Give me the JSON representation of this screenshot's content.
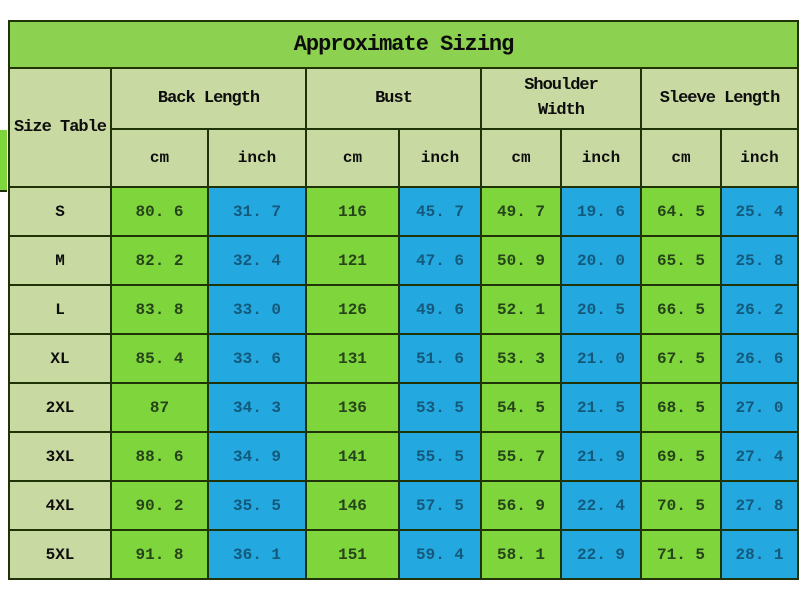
{
  "title": "Approximate Sizing",
  "colors": {
    "title_green": "#8CD14F",
    "header_green": "#C9D9A2",
    "cell_green": "#7ED53C",
    "cell_blue": "#24A8E0",
    "border": "#1F3307",
    "green_text": "#26431A",
    "blue_text": "#14597A"
  },
  "table": {
    "corner_label": "Size Table",
    "groups": [
      "Back Length",
      "Bust",
      "Shoulder Width",
      "Sleeve Length"
    ],
    "units": {
      "cm": "cm",
      "inch": "inch"
    },
    "rows": [
      {
        "size": "S",
        "values": [
          "80.6",
          "31.7",
          "116",
          "45.7",
          "49.7",
          "19.6",
          "64.5",
          "25.4"
        ]
      },
      {
        "size": "M",
        "values": [
          "82.2",
          "32.4",
          "121",
          "47.6",
          "50.9",
          "20.0",
          "65.5",
          "25.8"
        ]
      },
      {
        "size": "L",
        "values": [
          "83.8",
          "33.0",
          "126",
          "49.6",
          "52.1",
          "20.5",
          "66.5",
          "26.2"
        ]
      },
      {
        "size": "XL",
        "values": [
          "85.4",
          "33.6",
          "131",
          "51.6",
          "53.3",
          "21.0",
          "67.5",
          "26.6"
        ]
      },
      {
        "size": "2XL",
        "values": [
          "87",
          "34.3",
          "136",
          "53.5",
          "54.5",
          "21.5",
          "68.5",
          "27.0"
        ]
      },
      {
        "size": "3XL",
        "values": [
          "88.6",
          "34.9",
          "141",
          "55.5",
          "55.7",
          "21.9",
          "69.5",
          "27.4"
        ]
      },
      {
        "size": "4XL",
        "values": [
          "90.2",
          "35.5",
          "146",
          "57.5",
          "56.9",
          "22.4",
          "70.5",
          "27.8"
        ]
      },
      {
        "size": "5XL",
        "values": [
          "91.8",
          "36.1",
          "151",
          "59.4",
          "58.1",
          "22.9",
          "71.5",
          "28.1"
        ]
      }
    ]
  },
  "chart_data": {
    "type": "table",
    "title": "Approximate Sizing",
    "categories": [
      "S",
      "M",
      "L",
      "XL",
      "2XL",
      "3XL",
      "4XL",
      "5XL"
    ],
    "series": [
      {
        "name": "Back Length (cm)",
        "values": [
          80.6,
          82.2,
          83.8,
          85.4,
          87,
          88.6,
          90.2,
          91.8
        ]
      },
      {
        "name": "Back Length (inch)",
        "values": [
          31.7,
          32.4,
          33.0,
          33.6,
          34.3,
          34.9,
          35.5,
          36.1
        ]
      },
      {
        "name": "Bust (cm)",
        "values": [
          116,
          121,
          126,
          131,
          136,
          141,
          146,
          151
        ]
      },
      {
        "name": "Bust (inch)",
        "values": [
          45.7,
          47.6,
          49.6,
          51.6,
          53.5,
          55.5,
          57.5,
          59.4
        ]
      },
      {
        "name": "Shoulder Width (cm)",
        "values": [
          49.7,
          50.9,
          52.1,
          53.3,
          54.5,
          55.7,
          56.9,
          58.1
        ]
      },
      {
        "name": "Shoulder Width (inch)",
        "values": [
          19.6,
          20.0,
          20.5,
          21.0,
          21.5,
          21.9,
          22.4,
          22.9
        ]
      },
      {
        "name": "Sleeve Length (cm)",
        "values": [
          64.5,
          65.5,
          66.5,
          67.5,
          68.5,
          69.5,
          70.5,
          71.5
        ]
      },
      {
        "name": "Sleeve Length (inch)",
        "values": [
          25.4,
          25.8,
          26.2,
          26.6,
          27.0,
          27.4,
          27.8,
          28.1
        ]
      }
    ]
  }
}
